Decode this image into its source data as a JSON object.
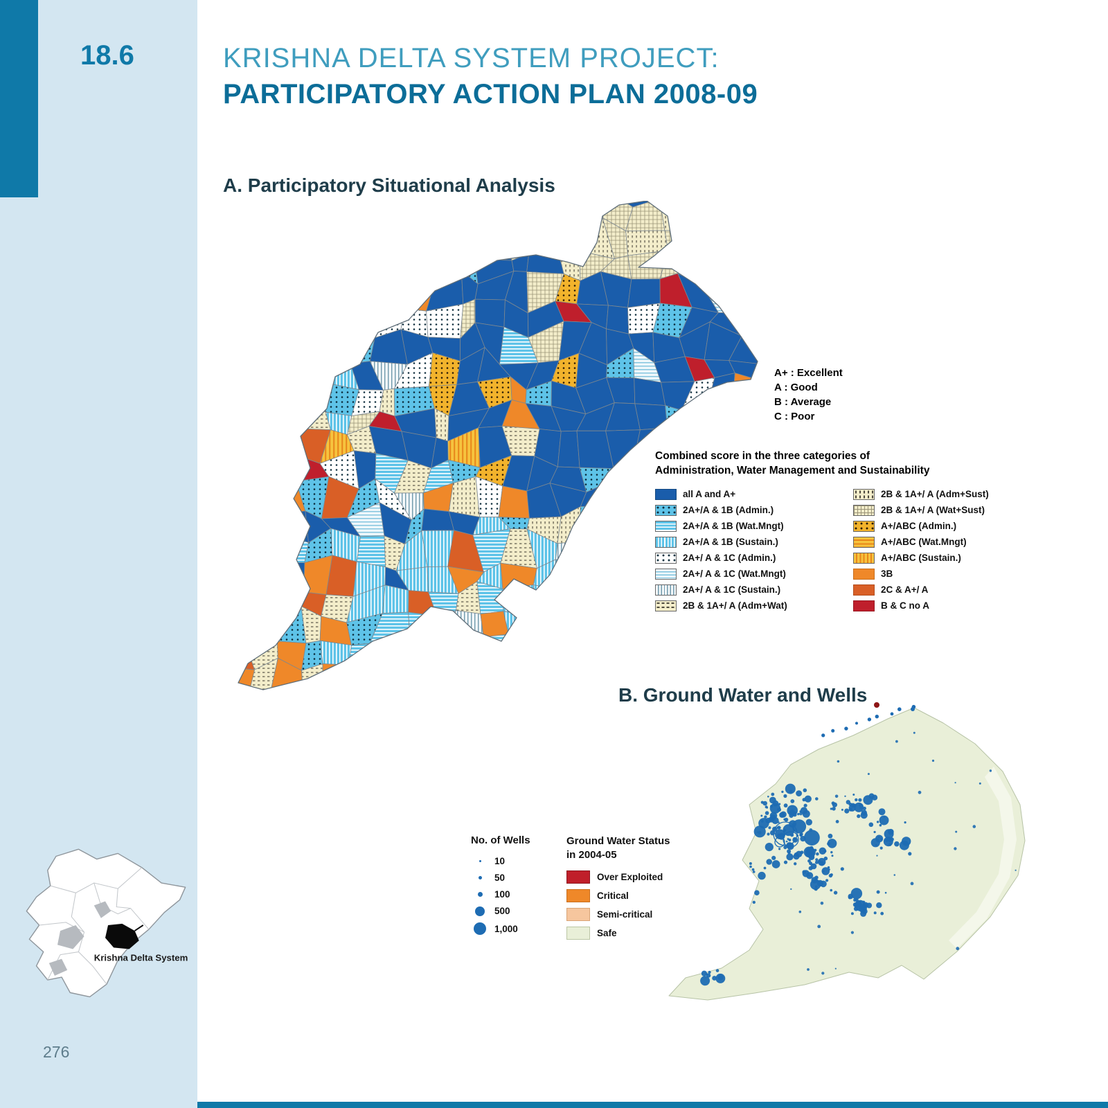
{
  "sidebar": {
    "section_number": "18.6",
    "page_number": "276",
    "inset_label": "Krishna Delta System"
  },
  "header": {
    "title_line1": "KRISHNA DELTA SYSTEM PROJECT:",
    "title_line2": "PARTICIPATORY ACTION PLAN 2008-09"
  },
  "section_a": {
    "heading": "A. Participatory Situational Analysis",
    "grades": [
      "A+ : Excellent",
      "A : Good",
      "B : Average",
      "C : Poor"
    ],
    "combined_line1": "Combined score in  the three categories of",
    "combined_line2": "Administration, Water Management and Sustainability",
    "legend_left": [
      {
        "swatch": "solid-blue",
        "label": "all A and A+"
      },
      {
        "swatch": "lightblue-dots",
        "label": "2A+/A & 1B (Admin.)"
      },
      {
        "swatch": "lightblue-hlines",
        "label": "2A+/A & 1B (Wat.Mngt)"
      },
      {
        "swatch": "lightblue-vlines",
        "label": "2A+/A & 1B (Sustain.)"
      },
      {
        "swatch": "white-dots",
        "label": "2A+/ A & 1C (Admin.)"
      },
      {
        "swatch": "white-hlines",
        "label": "2A+/ A & 1C (Wat.Mngt)"
      },
      {
        "swatch": "white-vlines",
        "label": "2A+/ A & 1C (Sustain.)"
      },
      {
        "swatch": "cream-dash-h",
        "label": "2B & 1A+/ A (Adm+Wat)"
      }
    ],
    "legend_right": [
      {
        "swatch": "cream-dash-v",
        "label": "2B & 1A+/ A (Adm+Sust)"
      },
      {
        "swatch": "cream-grid",
        "label": "2B & 1A+/ A (Wat+Sust)"
      },
      {
        "swatch": "yellow-dots",
        "label": "A+/ABC (Admin.)"
      },
      {
        "swatch": "yellow-hlines",
        "label": "A+/ABC (Wat.Mngt)"
      },
      {
        "swatch": "yellow-vlines",
        "label": "A+/ABC (Sustain.)"
      },
      {
        "swatch": "solid-orange",
        "label": "3B"
      },
      {
        "swatch": "solid-dkorange",
        "label": "2C & A+/ A"
      },
      {
        "swatch": "solid-red",
        "label": "B & C no A"
      }
    ]
  },
  "section_b": {
    "heading": "B. Ground Water and Wells",
    "wells_title": "No. of Wells",
    "well_sizes": [
      "10",
      "50",
      "100",
      "500",
      "1,000"
    ],
    "status_title_line1": "Ground Water Status",
    "status_title_line2": "in 2004-05",
    "status_items": [
      {
        "label": "Over Exploited",
        "color": "#c01f2a"
      },
      {
        "label": "Critical",
        "color": "#ef8829"
      },
      {
        "label": "Semi-critical",
        "color": "#f6c69e"
      },
      {
        "label": "Safe",
        "color": "#e9efd8"
      }
    ]
  },
  "colors": {
    "accent_teal": "#0f79a8",
    "title_light": "#3f9dbe",
    "title_dark": "#0c6d98",
    "sidebar_blue": "#d3e6f1",
    "map_dark_blue": "#1a5dab",
    "map_light_blue": "#5ec3e8",
    "map_orange": "#ef8829",
    "map_dark_orange": "#d95f26",
    "map_red": "#bf1f2c",
    "map_cream": "#f3edca",
    "map_yellow": "#f6c33e",
    "wells_blue": "#1e6cb3",
    "safe_green": "#e9efd8"
  }
}
